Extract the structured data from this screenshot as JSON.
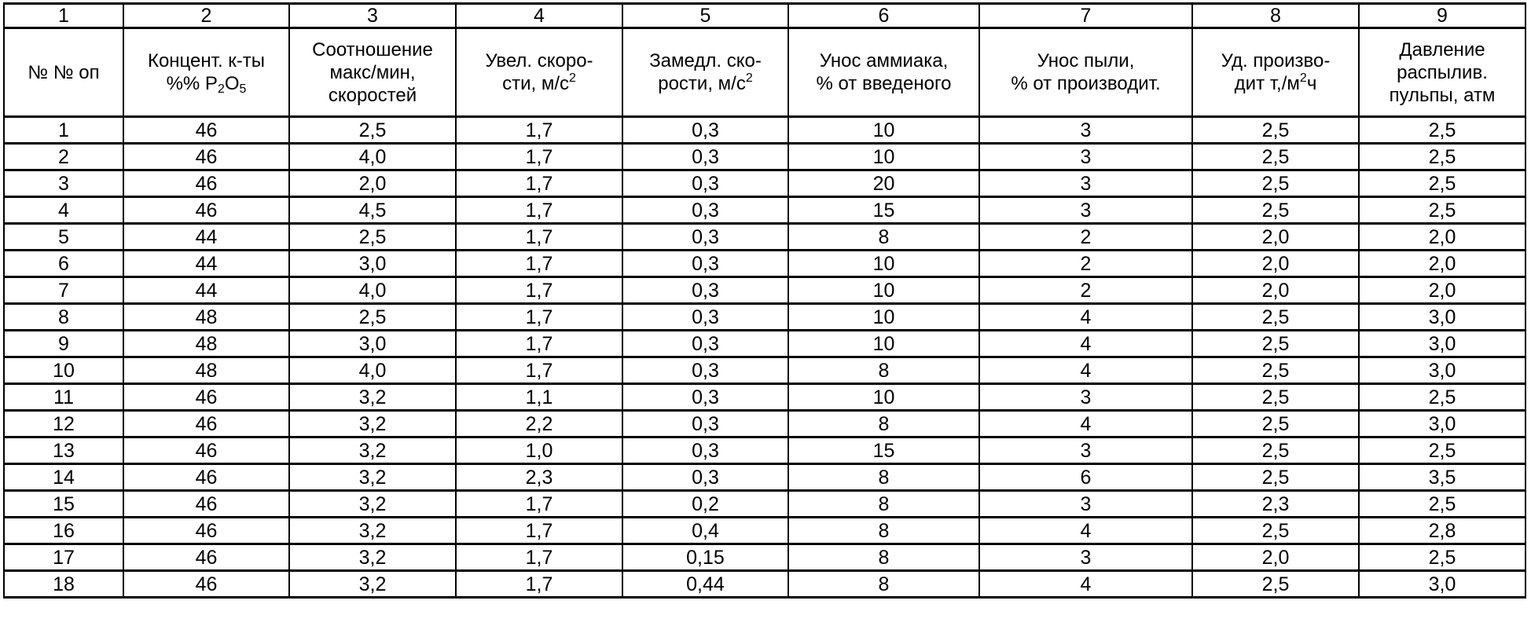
{
  "column_numbers": [
    "1",
    "2",
    "3",
    "4",
    "5",
    "6",
    "7",
    "8",
    "9"
  ],
  "headers": [
    {
      "lines": [
        "№ № оп"
      ]
    },
    {
      "lines": [
        "Концент. к-ты"
      ],
      "formula": {
        "prefix": "%% P",
        "sub1": "2",
        "mid": "O",
        "sub2": "5"
      }
    },
    {
      "lines": [
        "Соотношение",
        "макс/мин,",
        "скоростей"
      ]
    },
    {
      "lines": [
        "Увел. скоро-"
      ],
      "unit": {
        "text": "сти, м/с",
        "sup": "2",
        "after": ""
      }
    },
    {
      "lines": [
        "Замедл. ско-"
      ],
      "unit": {
        "text": "рости, м/с",
        "sup": "2",
        "after": ""
      }
    },
    {
      "lines": [
        "Унос аммиака,",
        "% от введеного"
      ]
    },
    {
      "lines": [
        "Унос пыли,",
        "% от производит."
      ]
    },
    {
      "lines": [
        "Уд. произво-"
      ],
      "unit": {
        "text": "дит т,/м",
        "sup": "2",
        "after": "ч"
      }
    },
    {
      "lines": [
        "Давление",
        "распылив.",
        "пульпы, атм"
      ]
    }
  ],
  "rows": [
    [
      "1",
      "46",
      "2,5",
      "1,7",
      "0,3",
      "10",
      "3",
      "2,5",
      "2,5"
    ],
    [
      "2",
      "46",
      "4,0",
      "1,7",
      "0,3",
      "10",
      "3",
      "2,5",
      "2,5"
    ],
    [
      "3",
      "46",
      "2,0",
      "1,7",
      "0,3",
      "20",
      "3",
      "2,5",
      "2,5"
    ],
    [
      "4",
      "46",
      "4,5",
      "1,7",
      "0,3",
      "15",
      "3",
      "2,5",
      "2,5"
    ],
    [
      "5",
      "44",
      "2,5",
      "1,7",
      "0,3",
      "8",
      "2",
      "2,0",
      "2,0"
    ],
    [
      "6",
      "44",
      "3,0",
      "1,7",
      "0,3",
      "10",
      "2",
      "2,0",
      "2,0"
    ],
    [
      "7",
      "44",
      "4,0",
      "1,7",
      "0,3",
      "10",
      "2",
      "2,0",
      "2,0"
    ],
    [
      "8",
      "48",
      "2,5",
      "1,7",
      "0,3",
      "10",
      "4",
      "2,5",
      "3,0"
    ],
    [
      "9",
      "48",
      "3,0",
      "1,7",
      "0,3",
      "10",
      "4",
      "2,5",
      "3,0"
    ],
    [
      "10",
      "48",
      "4,0",
      "1,7",
      "0,3",
      "8",
      "4",
      "2,5",
      "3,0"
    ],
    [
      "11",
      "46",
      "3,2",
      "1,1",
      "0,3",
      "10",
      "3",
      "2,5",
      "2,5"
    ],
    [
      "12",
      "46",
      "3,2",
      "2,2",
      "0,3",
      "8",
      "4",
      "2,5",
      "3,0"
    ],
    [
      "13",
      "46",
      "3,2",
      "1,0",
      "0,3",
      "15",
      "3",
      "2,5",
      "2,5"
    ],
    [
      "14",
      "46",
      "3,2",
      "2,3",
      "0,3",
      "8",
      "6",
      "2,5",
      "3,5"
    ],
    [
      "15",
      "46",
      "3,2",
      "1,7",
      "0,2",
      "8",
      "3",
      "2,3",
      "2,5"
    ],
    [
      "16",
      "46",
      "3,2",
      "1,7",
      "0,4",
      "8",
      "4",
      "2,5",
      "2,8"
    ],
    [
      "17",
      "46",
      "3,2",
      "1,7",
      "0,15",
      "8",
      "3",
      "2,0",
      "2,5"
    ],
    [
      "18",
      "46",
      "3,2",
      "1,7",
      "0,44",
      "8",
      "4",
      "2,5",
      "3,0"
    ]
  ]
}
